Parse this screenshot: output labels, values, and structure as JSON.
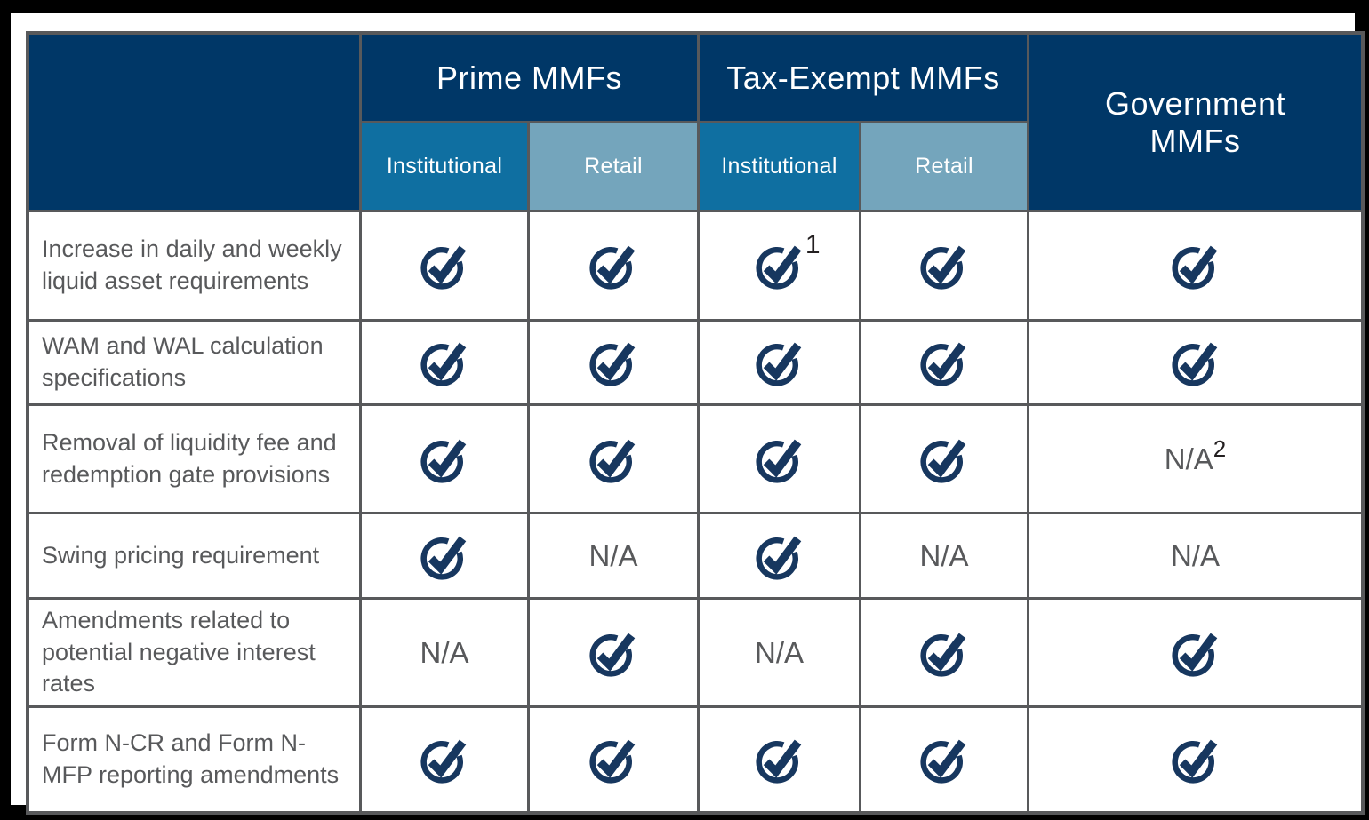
{
  "table": {
    "title_hidden": "",
    "corner_label": "",
    "column_groups": [
      {
        "label": "Prime MMFs",
        "sub": [
          "Institutional",
          "Retail"
        ]
      },
      {
        "label": "Tax-Exempt MMFs",
        "sub": [
          "Institutional",
          "Retail"
        ]
      },
      {
        "label": "Government MMFs",
        "sub": []
      }
    ],
    "na_label": "N/A",
    "check_icon": "check-circle-icon",
    "rows": [
      {
        "label": "Increase in daily and weekly liquid asset requirements",
        "cells": [
          {
            "type": "check"
          },
          {
            "type": "check"
          },
          {
            "type": "check",
            "sup": "1"
          },
          {
            "type": "check"
          },
          {
            "type": "check"
          }
        ]
      },
      {
        "label": "WAM and WAL calculation specifications",
        "cells": [
          {
            "type": "check"
          },
          {
            "type": "check"
          },
          {
            "type": "check"
          },
          {
            "type": "check"
          },
          {
            "type": "check"
          }
        ]
      },
      {
        "label": "Removal of liquidity fee and redemption gate provisions",
        "cells": [
          {
            "type": "check"
          },
          {
            "type": "check"
          },
          {
            "type": "check"
          },
          {
            "type": "check"
          },
          {
            "type": "na",
            "sup": "2"
          }
        ]
      },
      {
        "label": "Swing pricing requirement",
        "cells": [
          {
            "type": "check"
          },
          {
            "type": "na"
          },
          {
            "type": "check"
          },
          {
            "type": "na"
          },
          {
            "type": "na"
          }
        ]
      },
      {
        "label": "Amendments related to potential negative interest rates",
        "cells": [
          {
            "type": "na"
          },
          {
            "type": "check"
          },
          {
            "type": "na"
          },
          {
            "type": "check"
          },
          {
            "type": "check"
          }
        ]
      },
      {
        "label": "Form N-CR and Form N-MFP reporting amendments",
        "cells": [
          {
            "type": "check"
          },
          {
            "type": "check"
          },
          {
            "type": "check"
          },
          {
            "type": "check"
          },
          {
            "type": "check"
          }
        ]
      }
    ]
  },
  "colors": {
    "header_navy": "#003767",
    "institutional_blue": "#0f6fa1",
    "retail_blue": "#74a5bc",
    "border_gray": "#58595b",
    "check_navy": "#17375f",
    "label_gray": "#58595b",
    "superscript_black": "#231f20",
    "frame_black": "#000000",
    "cell_white": "#ffffff"
  }
}
